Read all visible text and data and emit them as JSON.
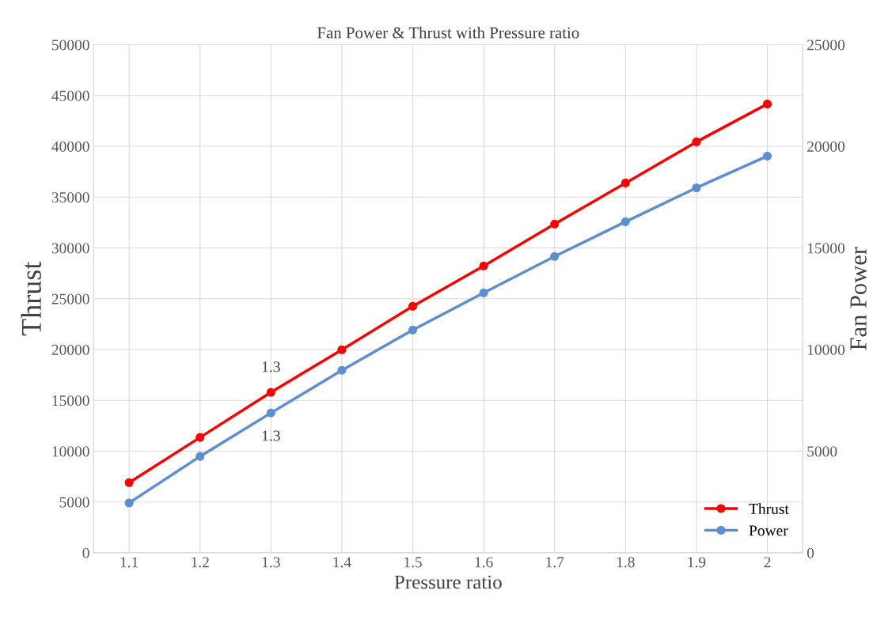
{
  "chart_data": {
    "type": "line",
    "title": "Fan Power & Thrust with Pressure ratio",
    "xlabel": "Pressure ratio",
    "ylabel": "Thrust",
    "y2label": "Fan Power",
    "categories": [
      "1.1",
      "1.2",
      "1.3",
      "1.4",
      "1.5",
      "1.6",
      "1.7",
      "1.8",
      "1.9",
      "2"
    ],
    "series": [
      {
        "name": "Thrust",
        "color": "#ff0000",
        "values": [
          6900,
          11350,
          15790,
          19980,
          24260,
          28230,
          32350,
          36390,
          40440,
          44170
        ]
      },
      {
        "name": "Power",
        "color": "#5b8fd0",
        "axis": "y2",
        "values": [
          2450,
          4740,
          6880,
          8980,
          10960,
          12790,
          14580,
          16290,
          17960,
          19520
        ]
      }
    ],
    "ylim": [
      0,
      50000
    ],
    "yticks": [
      0,
      5000,
      10000,
      15000,
      20000,
      25000,
      30000,
      35000,
      40000,
      45000,
      50000
    ],
    "y2lim": [
      0,
      25000
    ],
    "y2ticks": [
      0,
      5000,
      10000,
      15000,
      20000,
      25000
    ],
    "annotations": [
      {
        "text": "1.3",
        "x": "1.3",
        "y": 15790
      },
      {
        "text": "1.3",
        "x": "1.3",
        "y": 13760
      }
    ],
    "grid": true,
    "legend": "bottom right",
    "marker": "circle",
    "line_style": "solid"
  }
}
